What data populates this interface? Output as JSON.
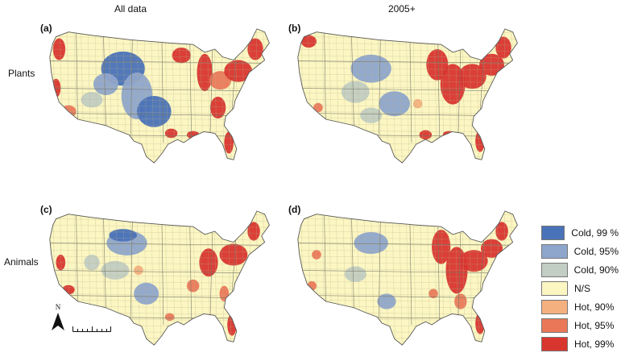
{
  "columns": {
    "left": "All data",
    "right": "2005+"
  },
  "rows": {
    "top": "Plants",
    "bottom": "Animals"
  },
  "panels": {
    "a": "(a)",
    "b": "(b)",
    "c": "(c)",
    "d": "(d)"
  },
  "legend": [
    {
      "label": "Cold, 99 %",
      "color": "#4a72b8"
    },
    {
      "label": "Cold, 95%",
      "color": "#8ea5cc"
    },
    {
      "label": "Cold, 90%",
      "color": "#c2cdc3"
    },
    {
      "label": "N/S",
      "color": "#fbf6c2"
    },
    {
      "label": "Hot, 90%",
      "color": "#f4b07f"
    },
    {
      "label": "Hot, 95%",
      "color": "#ea7858"
    },
    {
      "label": "Hot, 99%",
      "color": "#d9352f"
    }
  ],
  "north_label": "N",
  "colors": {
    "land": "#fbf6c2",
    "cold99": "#4a72b8",
    "cold95": "#8ea5cc",
    "cold90": "#c2cdc3",
    "hot90": "#f4b07f",
    "hot95": "#ea7858",
    "hot99": "#d9352f",
    "border": "#555555"
  }
}
